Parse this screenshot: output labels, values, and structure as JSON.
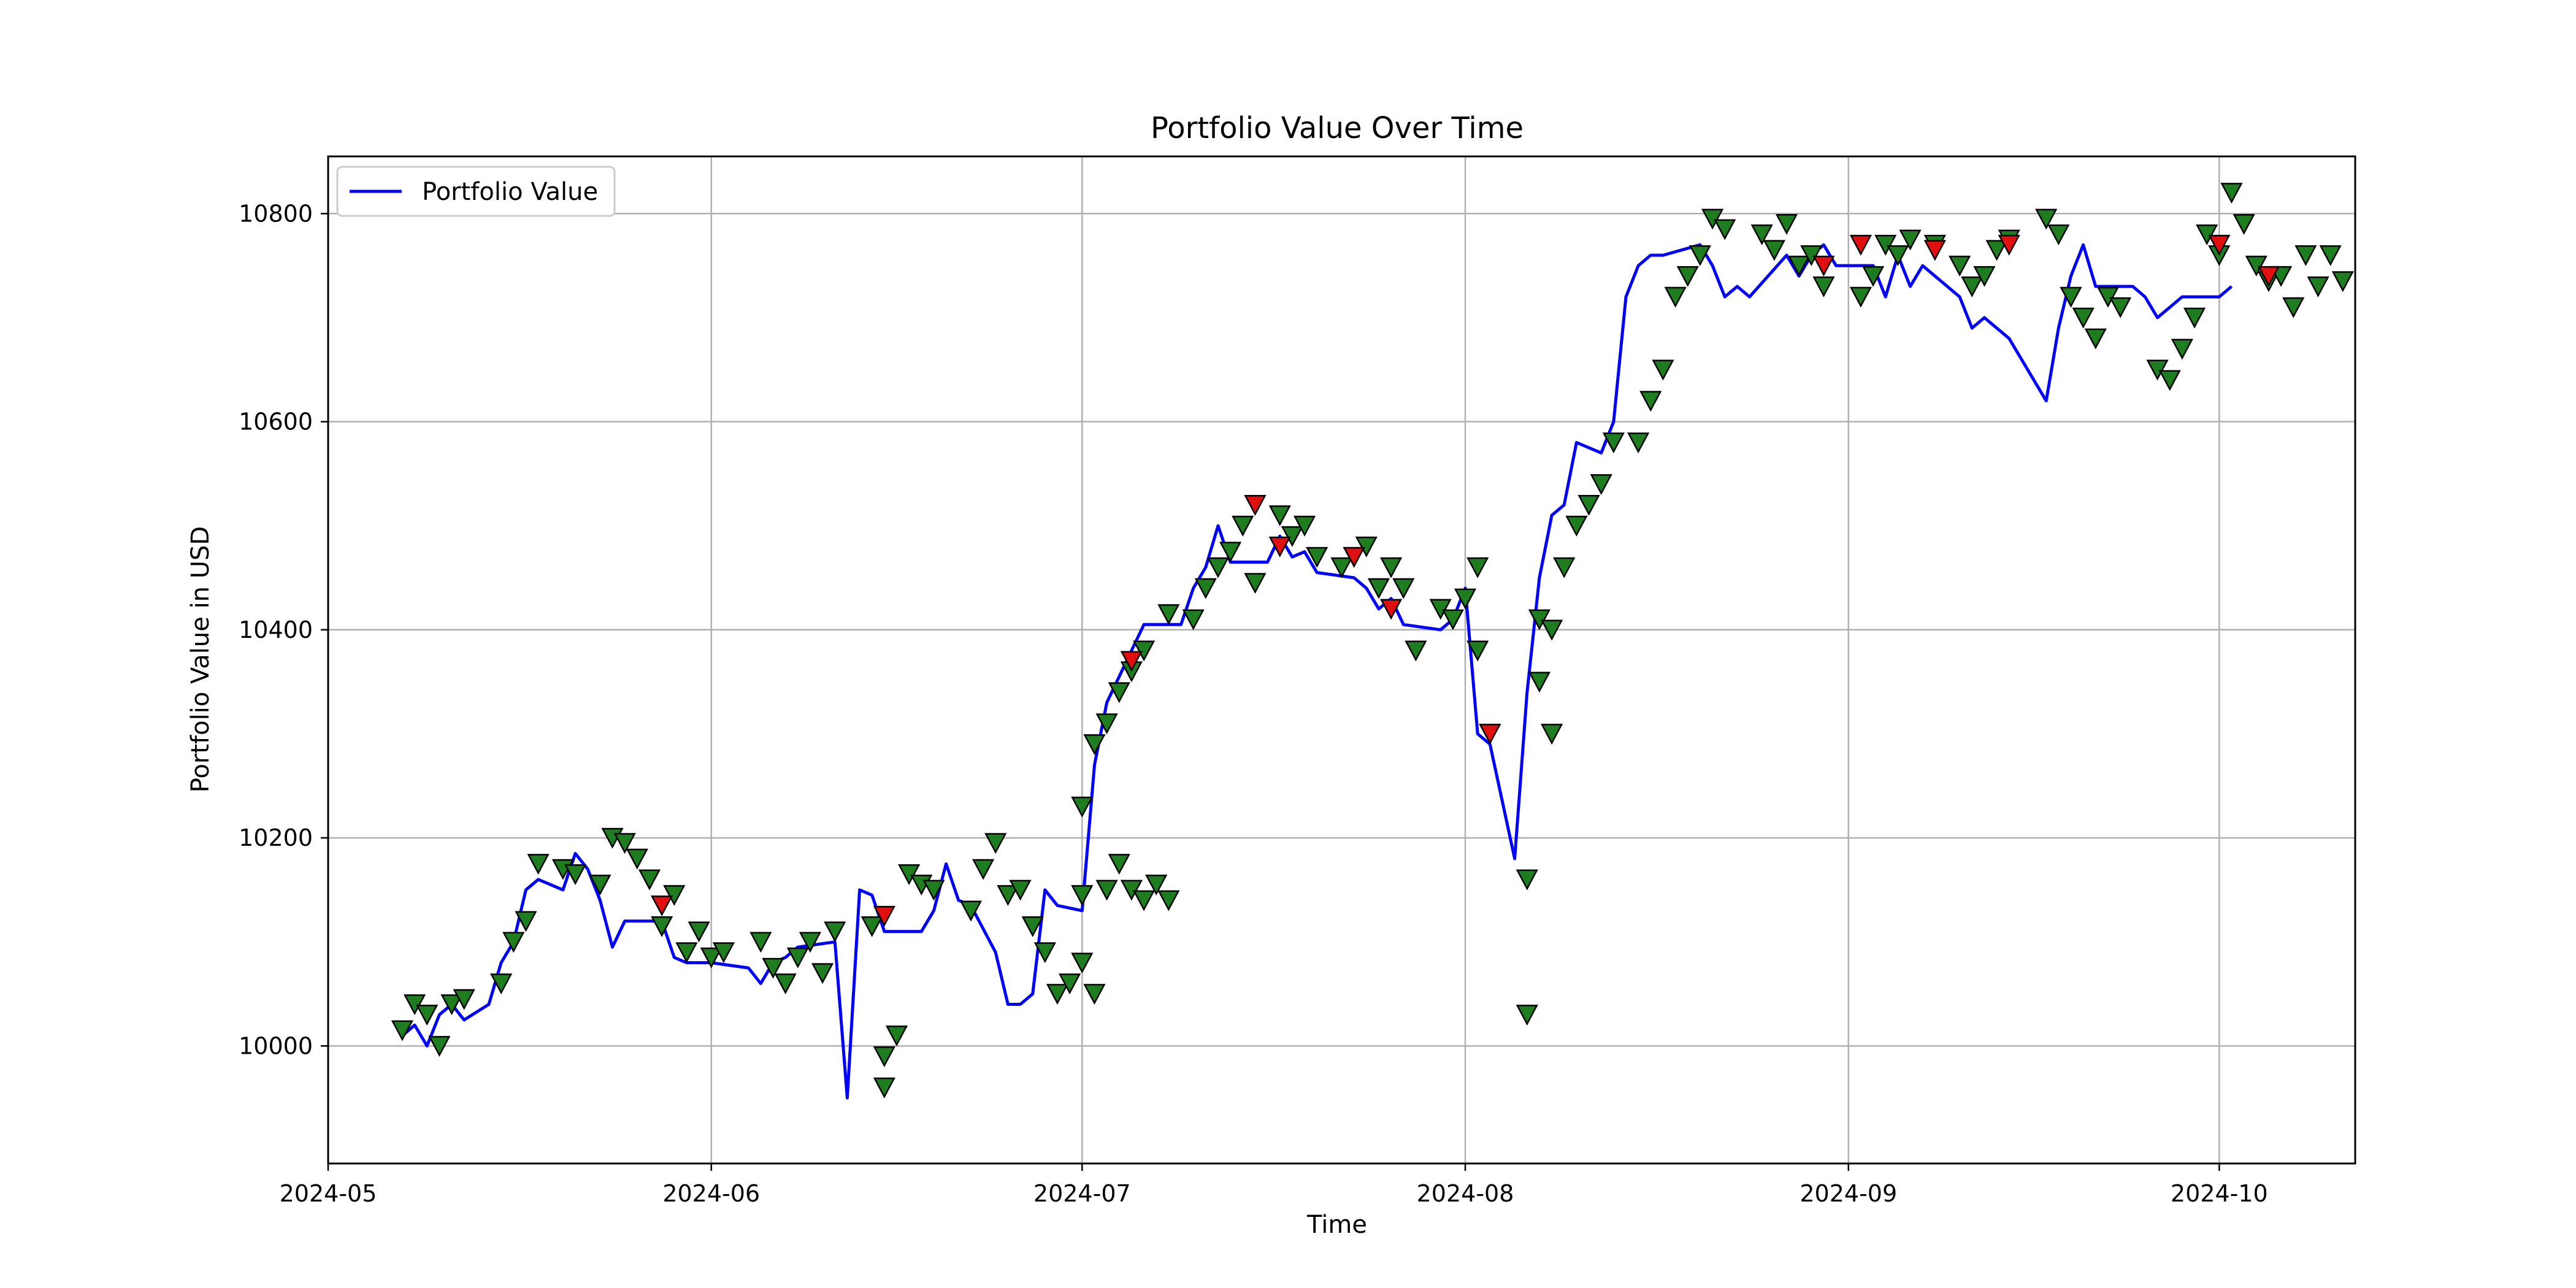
{
  "colors": {
    "line": "#0000ff",
    "buy_marker": "#1e7d1e",
    "sell_marker": "#e01010",
    "marker_edge": "#000000",
    "grid": "#b0b0b0",
    "axes": "#000000",
    "background": "#ffffff"
  },
  "chart_data": {
    "type": "line",
    "title": "Portfolio Value Over Time",
    "xlabel": "Time",
    "ylabel": "Portfolio Value in USD",
    "xlim": [
      "2024-05-01",
      "2024-10-12"
    ],
    "ylim": [
      9887,
      10855
    ],
    "xticks": [
      {
        "date": "2024-05-01",
        "label": "2024-05"
      },
      {
        "date": "2024-06-01",
        "label": "2024-06"
      },
      {
        "date": "2024-07-01",
        "label": "2024-07"
      },
      {
        "date": "2024-08-01",
        "label": "2024-08"
      },
      {
        "date": "2024-09-01",
        "label": "2024-09"
      },
      {
        "date": "2024-10-01",
        "label": "2024-10"
      }
    ],
    "yticks": [
      10000,
      10200,
      10400,
      10600,
      10800
    ],
    "grid": true,
    "legend": {
      "position": "top-left",
      "entries": [
        "Portfolio Value"
      ]
    },
    "series": [
      {
        "name": "Portfolio Value",
        "x": [
          "2024-05-07",
          "2024-05-08",
          "2024-05-09",
          "2024-05-10",
          "2024-05-11",
          "2024-05-12",
          "2024-05-14",
          "2024-05-15",
          "2024-05-16",
          "2024-05-17",
          "2024-05-18",
          "2024-05-20",
          "2024-05-21",
          "2024-05-22",
          "2024-05-23",
          "2024-05-24",
          "2024-05-25",
          "2024-05-28",
          "2024-05-29",
          "2024-05-30",
          "2024-05-31",
          "2024-06-01",
          "2024-06-04",
          "2024-06-05",
          "2024-06-06",
          "2024-06-07",
          "2024-06-08",
          "2024-06-11",
          "2024-06-12",
          "2024-06-13",
          "2024-06-14",
          "2024-06-15",
          "2024-06-18",
          "2024-06-19",
          "2024-06-20",
          "2024-06-21",
          "2024-06-22",
          "2024-06-24",
          "2024-06-25",
          "2024-06-26",
          "2024-06-27",
          "2024-06-28",
          "2024-06-29",
          "2024-07-01",
          "2024-07-02",
          "2024-07-03",
          "2024-07-04",
          "2024-07-05",
          "2024-07-06",
          "2024-07-09",
          "2024-07-10",
          "2024-07-11",
          "2024-07-12",
          "2024-07-13",
          "2024-07-16",
          "2024-07-17",
          "2024-07-18",
          "2024-07-19",
          "2024-07-20",
          "2024-07-23",
          "2024-07-24",
          "2024-07-25",
          "2024-07-26",
          "2024-07-27",
          "2024-07-30",
          "2024-07-31",
          "2024-08-01",
          "2024-08-02",
          "2024-08-03",
          "2024-08-05",
          "2024-08-06",
          "2024-08-07",
          "2024-08-08",
          "2024-08-09",
          "2024-08-10",
          "2024-08-12",
          "2024-08-13",
          "2024-08-14",
          "2024-08-15",
          "2024-08-16",
          "2024-08-17",
          "2024-08-20",
          "2024-08-21",
          "2024-08-22",
          "2024-08-23",
          "2024-08-24",
          "2024-08-27",
          "2024-08-28",
          "2024-08-29",
          "2024-08-30",
          "2024-08-31",
          "2024-09-03",
          "2024-09-04",
          "2024-09-05",
          "2024-09-06",
          "2024-09-07",
          "2024-09-10",
          "2024-09-11",
          "2024-09-12",
          "2024-09-13",
          "2024-09-14",
          "2024-09-17",
          "2024-09-18",
          "2024-09-19",
          "2024-09-20",
          "2024-09-21",
          "2024-09-24",
          "2024-09-25",
          "2024-09-26",
          "2024-09-27",
          "2024-09-28",
          "2024-10-01",
          "2024-10-02"
        ],
        "values": [
          10010,
          10020,
          10000,
          10030,
          10040,
          10025,
          10040,
          10080,
          10100,
          10150,
          10160,
          10150,
          10185,
          10170,
          10140,
          10095,
          10120,
          10120,
          10085,
          10080,
          10080,
          10080,
          10075,
          10060,
          10080,
          10085,
          10095,
          10100,
          9950,
          10150,
          10145,
          10110,
          10110,
          10130,
          10175,
          10140,
          10135,
          10090,
          10040,
          10040,
          10050,
          10150,
          10135,
          10130,
          10270,
          10330,
          10355,
          10380,
          10405,
          10405,
          10440,
          10460,
          10500,
          10465,
          10465,
          10490,
          10470,
          10475,
          10455,
          10450,
          10440,
          10420,
          10430,
          10405,
          10400,
          10410,
          10440,
          10300,
          10290,
          10180,
          10340,
          10450,
          10510,
          10520,
          10580,
          10570,
          10600,
          10720,
          10750,
          10760,
          10760,
          10770,
          10750,
          10720,
          10730,
          10720,
          10760,
          10740,
          10760,
          10770,
          10750,
          10750,
          10720,
          10760,
          10730,
          10750,
          10720,
          10690,
          10700,
          10690,
          10680,
          10620,
          10690,
          10740,
          10770,
          10730,
          10730,
          10720,
          10700,
          10710,
          10720,
          10720,
          10730
        ]
      }
    ],
    "markers": {
      "buy": [
        [
          "2024-05-07",
          10015
        ],
        [
          "2024-05-08",
          10040
        ],
        [
          "2024-05-09",
          10030
        ],
        [
          "2024-05-10",
          10000
        ],
        [
          "2024-05-11",
          10040
        ],
        [
          "2024-05-12",
          10045
        ],
        [
          "2024-05-15",
          10060
        ],
        [
          "2024-05-16",
          10100
        ],
        [
          "2024-05-17",
          10120
        ],
        [
          "2024-05-18",
          10175
        ],
        [
          "2024-05-20",
          10170
        ],
        [
          "2024-05-21",
          10165
        ],
        [
          "2024-05-23",
          10155
        ],
        [
          "2024-05-24",
          10200
        ],
        [
          "2024-05-25",
          10195
        ],
        [
          "2024-05-26",
          10180
        ],
        [
          "2024-05-27",
          10160
        ],
        [
          "2024-05-28",
          10115
        ],
        [
          "2024-05-29",
          10145
        ],
        [
          "2024-05-30",
          10090
        ],
        [
          "2024-05-31",
          10110
        ],
        [
          "2024-06-01",
          10085
        ],
        [
          "2024-06-02",
          10090
        ],
        [
          "2024-06-05",
          10100
        ],
        [
          "2024-06-06",
          10075
        ],
        [
          "2024-06-07",
          10060
        ],
        [
          "2024-06-08",
          10085
        ],
        [
          "2024-06-09",
          10100
        ],
        [
          "2024-06-10",
          10070
        ],
        [
          "2024-06-11",
          10110
        ],
        [
          "2024-06-14",
          10115
        ],
        [
          "2024-06-15",
          9990
        ],
        [
          "2024-06-15",
          9960
        ],
        [
          "2024-06-16",
          10010
        ],
        [
          "2024-06-17",
          10165
        ],
        [
          "2024-06-18",
          10155
        ],
        [
          "2024-06-19",
          10150
        ],
        [
          "2024-06-22",
          10130
        ],
        [
          "2024-06-23",
          10170
        ],
        [
          "2024-06-24",
          10195
        ],
        [
          "2024-06-25",
          10145
        ],
        [
          "2024-06-26",
          10150
        ],
        [
          "2024-06-27",
          10115
        ],
        [
          "2024-06-28",
          10090
        ],
        [
          "2024-06-29",
          10050
        ],
        [
          "2024-06-30",
          10060
        ],
        [
          "2024-07-01",
          10080
        ],
        [
          "2024-07-02",
          10050
        ],
        [
          "2024-07-03",
          10150
        ],
        [
          "2024-07-04",
          10175
        ],
        [
          "2024-07-05",
          10150
        ],
        [
          "2024-07-06",
          10140
        ],
        [
          "2024-07-07",
          10155
        ],
        [
          "2024-07-08",
          10140
        ],
        [
          "2024-07-01",
          10145
        ],
        [
          "2024-07-01",
          10230
        ],
        [
          "2024-07-02",
          10290
        ],
        [
          "2024-07-03",
          10310
        ],
        [
          "2024-07-04",
          10340
        ],
        [
          "2024-07-05",
          10360
        ],
        [
          "2024-07-06",
          10380
        ],
        [
          "2024-07-08",
          10415
        ],
        [
          "2024-07-10",
          10410
        ],
        [
          "2024-07-11",
          10440
        ],
        [
          "2024-07-12",
          10460
        ],
        [
          "2024-07-13",
          10475
        ],
        [
          "2024-07-14",
          10500
        ],
        [
          "2024-07-15",
          10520
        ],
        [
          "2024-07-15",
          10445
        ],
        [
          "2024-07-17",
          10510
        ],
        [
          "2024-07-18",
          10490
        ],
        [
          "2024-07-19",
          10500
        ],
        [
          "2024-07-20",
          10470
        ],
        [
          "2024-07-22",
          10460
        ],
        [
          "2024-07-23",
          10470
        ],
        [
          "2024-07-24",
          10480
        ],
        [
          "2024-07-25",
          10440
        ],
        [
          "2024-07-26",
          10460
        ],
        [
          "2024-07-27",
          10440
        ],
        [
          "2024-07-28",
          10380
        ],
        [
          "2024-07-30",
          10420
        ],
        [
          "2024-07-31",
          10410
        ],
        [
          "2024-08-01",
          10430
        ],
        [
          "2024-08-02",
          10460
        ],
        [
          "2024-08-02",
          10380
        ],
        [
          "2024-08-03",
          10300
        ],
        [
          "2024-08-06",
          10030
        ],
        [
          "2024-08-06",
          10160
        ],
        [
          "2024-08-07",
          10350
        ],
        [
          "2024-08-07",
          10410
        ],
        [
          "2024-08-08",
          10400
        ],
        [
          "2024-08-08",
          10300
        ],
        [
          "2024-08-09",
          10460
        ],
        [
          "2024-08-10",
          10500
        ],
        [
          "2024-08-11",
          10520
        ],
        [
          "2024-08-12",
          10540
        ],
        [
          "2024-08-13",
          10580
        ],
        [
          "2024-08-15",
          10580
        ],
        [
          "2024-08-16",
          10620
        ],
        [
          "2024-08-17",
          10650
        ],
        [
          "2024-08-18",
          10720
        ],
        [
          "2024-08-19",
          10740
        ],
        [
          "2024-08-20",
          10760
        ],
        [
          "2024-08-21",
          10795
        ],
        [
          "2024-08-22",
          10785
        ],
        [
          "2024-08-25",
          10780
        ],
        [
          "2024-08-26",
          10765
        ],
        [
          "2024-08-27",
          10790
        ],
        [
          "2024-08-28",
          10750
        ],
        [
          "2024-08-29",
          10760
        ],
        [
          "2024-08-30",
          10730
        ],
        [
          "2024-09-02",
          10720
        ],
        [
          "2024-09-03",
          10740
        ],
        [
          "2024-09-04",
          10770
        ],
        [
          "2024-09-05",
          10760
        ],
        [
          "2024-09-06",
          10775
        ],
        [
          "2024-09-08",
          10770
        ],
        [
          "2024-09-10",
          10750
        ],
        [
          "2024-09-11",
          10730
        ],
        [
          "2024-09-12",
          10740
        ],
        [
          "2024-09-13",
          10765
        ],
        [
          "2024-09-14",
          10775
        ],
        [
          "2024-09-17",
          10795
        ],
        [
          "2024-09-18",
          10780
        ],
        [
          "2024-09-19",
          10720
        ],
        [
          "2024-09-20",
          10700
        ],
        [
          "2024-09-21",
          10680
        ],
        [
          "2024-09-22",
          10720
        ],
        [
          "2024-09-23",
          10710
        ],
        [
          "2024-09-26",
          10650
        ],
        [
          "2024-09-27",
          10640
        ],
        [
          "2024-09-28",
          10670
        ],
        [
          "2024-09-29",
          10700
        ],
        [
          "2024-09-30",
          10780
        ],
        [
          "2024-10-01",
          10760
        ],
        [
          "2024-10-02",
          10820
        ],
        [
          "2024-10-03",
          10790
        ],
        [
          "2024-10-04",
          10750
        ],
        [
          "2024-10-05",
          10735
        ],
        [
          "2024-10-06",
          10740
        ],
        [
          "2024-10-07",
          10710
        ],
        [
          "2024-10-08",
          10760
        ],
        [
          "2024-10-09",
          10730
        ],
        [
          "2024-10-10",
          10760
        ],
        [
          "2024-10-11",
          10735
        ]
      ],
      "sell": [
        [
          "2024-05-28",
          10135
        ],
        [
          "2024-06-15",
          10125
        ],
        [
          "2024-07-05",
          10370
        ],
        [
          "2024-07-15",
          10520
        ],
        [
          "2024-07-17",
          10480
        ],
        [
          "2024-07-23",
          10470
        ],
        [
          "2024-07-26",
          10420
        ],
        [
          "2024-08-03",
          10300
        ],
        [
          "2024-08-30",
          10750
        ],
        [
          "2024-09-02",
          10770
        ],
        [
          "2024-09-08",
          10765
        ],
        [
          "2024-09-14",
          10770
        ],
        [
          "2024-10-01",
          10770
        ],
        [
          "2024-10-05",
          10740
        ]
      ]
    }
  }
}
